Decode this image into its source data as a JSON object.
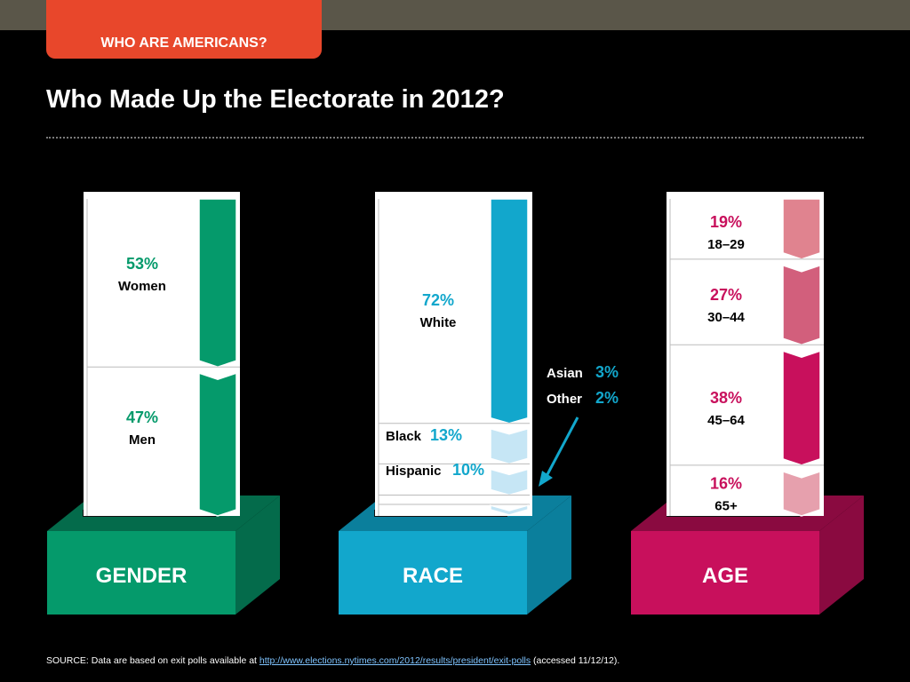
{
  "header": {
    "tab_label": "WHO ARE AMERICANS?",
    "title": "Who Made Up the Electorate in 2012?"
  },
  "colors": {
    "topbar": "#5a5649",
    "tab": "#e8472b",
    "gender": "#059a6b",
    "race": "#12a7cc",
    "race_light": "#c6e6f5",
    "age": "#c8105c",
    "age_shades": [
      "#e0838f",
      "#d25f7c",
      "#c8105c",
      "#e6a0ad"
    ]
  },
  "chart_data": [
    {
      "type": "bar",
      "box_label": "GENDER",
      "segments": [
        {
          "label": "Women",
          "value": 53,
          "value_text": "53%"
        },
        {
          "label": "Men",
          "value": 47,
          "value_text": "47%"
        }
      ]
    },
    {
      "type": "bar",
      "box_label": "RACE",
      "segments": [
        {
          "label": "White",
          "value": 72,
          "value_text": "72%"
        },
        {
          "label": "Black",
          "value": 13,
          "value_text": "13%"
        },
        {
          "label": "Hispanic",
          "value": 10,
          "value_text": "10%"
        },
        {
          "label": "Asian",
          "value": 3,
          "value_text": "3%"
        },
        {
          "label": "Other",
          "value": 2,
          "value_text": "2%"
        }
      ]
    },
    {
      "type": "bar",
      "box_label": "AGE",
      "segments": [
        {
          "label": "18–29",
          "value": 19,
          "value_text": "19%"
        },
        {
          "label": "30–44",
          "value": 27,
          "value_text": "27%"
        },
        {
          "label": "45–64",
          "value": 38,
          "value_text": "38%"
        },
        {
          "label": "65+",
          "value": 16,
          "value_text": "16%"
        }
      ]
    }
  ],
  "source": {
    "prefix": "SOURCE:  Data are based on exit polls available at ",
    "link_text": "http://www.elections.nytimes.com/2012/results/president/exit-polls",
    "suffix": " (accessed 11/12/12)."
  }
}
